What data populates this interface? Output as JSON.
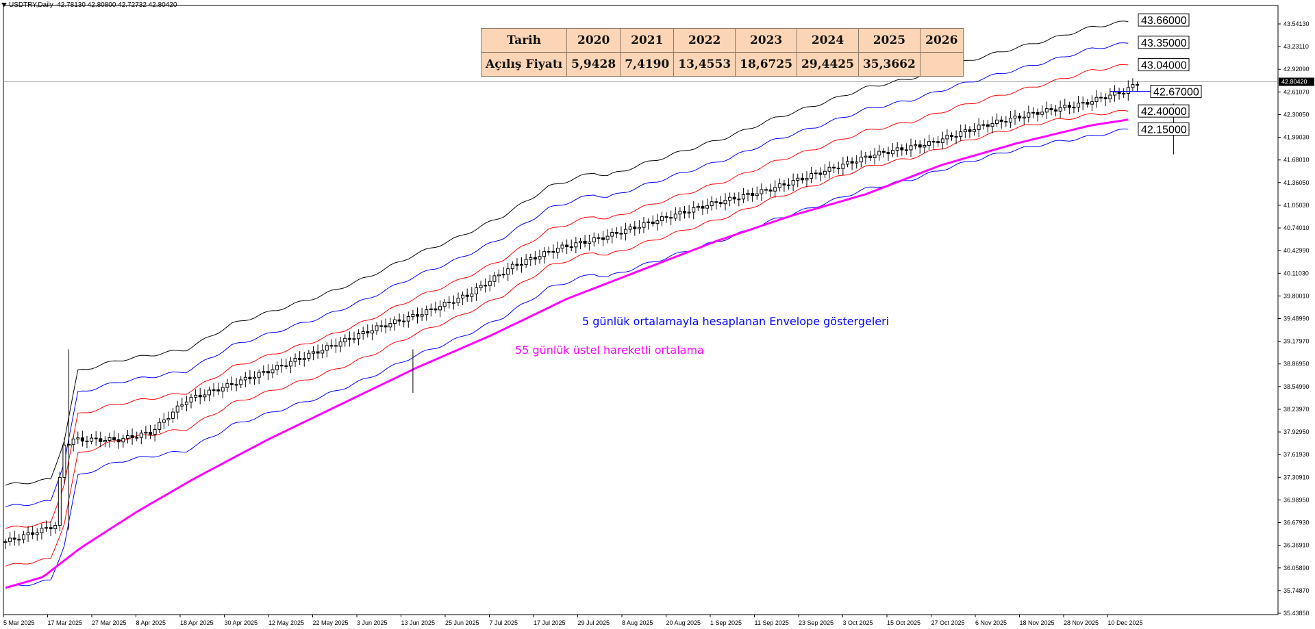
{
  "header": {
    "symbol_line": "USDTRY,Daily",
    "ohlc": "42.78130 42.80800 42.72732 42.80420"
  },
  "table": {
    "row1_label": "Tarih",
    "row2_label": "Açılış Fiyatı",
    "years": [
      "2020",
      "2021",
      "2022",
      "2023",
      "2024",
      "2025",
      "2026"
    ],
    "prices": [
      "5,9428",
      "7,4190",
      "13,4553",
      "18,6725",
      "29,4425",
      "35,3662",
      ""
    ]
  },
  "annotations": {
    "envelope_note": "5 günlük ortalamayla hesaplanan Envelope göstergeleri",
    "ema_note": "55 günlük üstel hareketli ortalama"
  },
  "colors": {
    "envelope_outer": "#000000",
    "envelope_mid": "#0000ff",
    "envelope_inner": "#ff0000",
    "ema": "#ff00ff",
    "candle": "#000000",
    "envelope_text": "#0000ff",
    "ema_text": "#ff00ff"
  },
  "chart_data": {
    "type": "line",
    "symbol": "USDTRY",
    "timeframe": "Daily",
    "current_price": 42.8042,
    "current_price_label": "42.80420",
    "ylim": [
      35.43,
      43.86
    ],
    "y_ticks": [
      "43.54130",
      "43.23110",
      "42.92090",
      "42.61070",
      "42.30050",
      "41.99030",
      "41.68010",
      "41.36050",
      "41.05030",
      "40.74010",
      "40.42990",
      "40.11030",
      "39.80010",
      "39.48990",
      "39.17970",
      "38.86950",
      "38.54990",
      "38.23970",
      "37.92950",
      "37.61930",
      "37.30910",
      "36.98950",
      "36.67930",
      "36.36910",
      "36.05890",
      "35.74870",
      "35.43850"
    ],
    "x_ticks": [
      "5 Mar 2025",
      "17 Mar 2025",
      "27 Mar 2025",
      "8 Apr 2025",
      "18 Apr 2025",
      "30 Apr 2025",
      "12 May 2025",
      "22 May 2025",
      "3 Jun 2025",
      "13 Jun 2025",
      "25 Jun 2025",
      "7 Jul 2025",
      "17 Jul 2025",
      "29 Jul 2025",
      "8 Aug 2025",
      "20 Aug 2025",
      "1 Sep 2025",
      "11 Sep 2025",
      "23 Sep 2025",
      "3 Oct 2025",
      "15 Oct 2025",
      "27 Oct 2025",
      "6 Nov 2025",
      "18 Nov 2025",
      "28 Nov 2025",
      "10 Dec 2025"
    ],
    "level_labels": [
      "43.66000",
      "43.35000",
      "43.04000",
      "42.67000",
      "42.40000",
      "42.15000"
    ],
    "close_anchors": [
      [
        0,
        36.44
      ],
      [
        8,
        36.6
      ],
      [
        11,
        36.67
      ],
      [
        12,
        37.3
      ],
      [
        13,
        37.78
      ],
      [
        15,
        37.85
      ],
      [
        25,
        37.85
      ],
      [
        32,
        37.95
      ],
      [
        40,
        38.4
      ],
      [
        50,
        38.62
      ],
      [
        60,
        38.85
      ],
      [
        70,
        39.1
      ],
      [
        82,
        39.4
      ],
      [
        92,
        39.6
      ],
      [
        102,
        39.85
      ],
      [
        112,
        40.25
      ],
      [
        122,
        40.5
      ],
      [
        132,
        40.65
      ],
      [
        142,
        40.85
      ],
      [
        155,
        41.1
      ],
      [
        168,
        41.3
      ],
      [
        180,
        41.55
      ],
      [
        192,
        41.8
      ],
      [
        204,
        41.95
      ],
      [
        216,
        42.2
      ],
      [
        228,
        42.38
      ],
      [
        238,
        42.5
      ],
      [
        242,
        42.58
      ],
      [
        247,
        42.67
      ],
      [
        250,
        42.78
      ]
    ],
    "envelope_bands": {
      "outer_upper": [
        [
          0,
          37.22
        ],
        [
          10,
          37.3
        ],
        [
          13,
          37.85
        ],
        [
          16,
          38.8
        ],
        [
          25,
          38.95
        ],
        [
          35,
          39.05
        ],
        [
          40,
          39.1
        ],
        [
          43,
          39.2
        ],
        [
          50,
          39.45
        ],
        [
          60,
          39.65
        ],
        [
          70,
          39.85
        ],
        [
          80,
          40.1
        ],
        [
          90,
          40.4
        ],
        [
          100,
          40.65
        ],
        [
          110,
          40.95
        ],
        [
          120,
          41.35
        ],
        [
          130,
          41.55
        ],
        [
          133,
          41.5
        ],
        [
          140,
          41.65
        ],
        [
          150,
          41.85
        ],
        [
          160,
          42.05
        ],
        [
          170,
          42.3
        ],
        [
          180,
          42.5
        ],
        [
          190,
          42.72
        ],
        [
          200,
          42.85
        ],
        [
          210,
          43.05
        ],
        [
          220,
          43.22
        ],
        [
          230,
          43.38
        ],
        [
          240,
          43.56
        ],
        [
          248,
          43.64
        ]
      ],
      "mid_upper": [
        [
          0,
          36.92
        ],
        [
          10,
          37.0
        ],
        [
          13,
          37.55
        ],
        [
          16,
          38.5
        ],
        [
          25,
          38.65
        ],
        [
          35,
          38.75
        ],
        [
          40,
          38.8
        ],
        [
          43,
          38.9
        ],
        [
          50,
          39.15
        ],
        [
          60,
          39.35
        ],
        [
          70,
          39.55
        ],
        [
          80,
          39.8
        ],
        [
          90,
          40.1
        ],
        [
          100,
          40.35
        ],
        [
          110,
          40.65
        ],
        [
          120,
          41.05
        ],
        [
          130,
          41.25
        ],
        [
          133,
          41.2
        ],
        [
          140,
          41.35
        ],
        [
          150,
          41.55
        ],
        [
          160,
          41.75
        ],
        [
          170,
          42.0
        ],
        [
          180,
          42.2
        ],
        [
          190,
          42.42
        ],
        [
          200,
          42.55
        ],
        [
          210,
          42.75
        ],
        [
          220,
          42.92
        ],
        [
          230,
          43.08
        ],
        [
          240,
          43.26
        ],
        [
          248,
          43.34
        ]
      ],
      "inner_upper": [
        [
          0,
          36.62
        ],
        [
          10,
          36.7
        ],
        [
          13,
          37.25
        ],
        [
          16,
          38.2
        ],
        [
          25,
          38.35
        ],
        [
          35,
          38.45
        ],
        [
          40,
          38.5
        ],
        [
          43,
          38.6
        ],
        [
          50,
          38.85
        ],
        [
          60,
          39.05
        ],
        [
          70,
          39.25
        ],
        [
          80,
          39.5
        ],
        [
          90,
          39.8
        ],
        [
          100,
          40.05
        ],
        [
          110,
          40.35
        ],
        [
          120,
          40.75
        ],
        [
          130,
          40.95
        ],
        [
          133,
          40.9
        ],
        [
          140,
          41.05
        ],
        [
          150,
          41.25
        ],
        [
          160,
          41.45
        ],
        [
          170,
          41.7
        ],
        [
          180,
          41.9
        ],
        [
          190,
          42.12
        ],
        [
          200,
          42.25
        ],
        [
          210,
          42.45
        ],
        [
          220,
          42.62
        ],
        [
          230,
          42.78
        ],
        [
          240,
          42.96
        ],
        [
          248,
          43.04
        ]
      ],
      "inner_lower": [
        [
          0,
          36.1
        ],
        [
          10,
          36.2
        ],
        [
          13,
          36.7
        ],
        [
          16,
          37.65
        ],
        [
          25,
          37.85
        ],
        [
          35,
          37.95
        ],
        [
          40,
          38.0
        ],
        [
          43,
          38.1
        ],
        [
          50,
          38.35
        ],
        [
          60,
          38.55
        ],
        [
          70,
          38.75
        ],
        [
          80,
          39.0
        ],
        [
          90,
          39.3
        ],
        [
          100,
          39.55
        ],
        [
          110,
          39.85
        ],
        [
          120,
          40.25
        ],
        [
          130,
          40.45
        ],
        [
          133,
          40.4
        ],
        [
          140,
          40.55
        ],
        [
          150,
          40.75
        ],
        [
          160,
          40.95
        ],
        [
          170,
          41.2
        ],
        [
          180,
          41.4
        ],
        [
          190,
          41.62
        ],
        [
          200,
          41.75
        ],
        [
          210,
          41.95
        ],
        [
          220,
          42.12
        ],
        [
          230,
          42.25
        ],
        [
          240,
          42.35
        ],
        [
          248,
          42.4
        ]
      ],
      "mid_lower": [
        [
          0,
          35.8
        ],
        [
          10,
          35.9
        ],
        [
          13,
          36.4
        ],
        [
          16,
          37.35
        ],
        [
          25,
          37.55
        ],
        [
          35,
          37.65
        ],
        [
          40,
          37.7
        ],
        [
          43,
          37.8
        ],
        [
          50,
          38.05
        ],
        [
          60,
          38.25
        ],
        [
          70,
          38.45
        ],
        [
          80,
          38.7
        ],
        [
          90,
          39.0
        ],
        [
          100,
          39.25
        ],
        [
          110,
          39.55
        ],
        [
          120,
          39.95
        ],
        [
          130,
          40.15
        ],
        [
          133,
          40.1
        ],
        [
          140,
          40.25
        ],
        [
          150,
          40.45
        ],
        [
          160,
          40.65
        ],
        [
          170,
          40.9
        ],
        [
          180,
          41.1
        ],
        [
          190,
          41.32
        ],
        [
          200,
          41.45
        ],
        [
          210,
          41.65
        ],
        [
          220,
          41.82
        ],
        [
          230,
          41.95
        ],
        [
          240,
          42.05
        ],
        [
          248,
          42.15
        ]
      ]
    },
    "ema55": [
      [
        0,
        35.8
      ],
      [
        10,
        35.95
      ],
      [
        20,
        36.35
      ],
      [
        35,
        36.85
      ],
      [
        50,
        37.3
      ],
      [
        70,
        37.85
      ],
      [
        90,
        38.35
      ],
      [
        110,
        38.85
      ],
      [
        130,
        39.3
      ],
      [
        150,
        39.8
      ],
      [
        170,
        40.2
      ],
      [
        190,
        40.6
      ],
      [
        210,
        40.95
      ],
      [
        230,
        41.25
      ],
      [
        250,
        41.65
      ],
      [
        270,
        41.95
      ],
      [
        290,
        42.2
      ],
      [
        300,
        42.28
      ]
    ],
    "ema55_x_scale": "candle_index_0_to_248",
    "spikes": [
      [
        14,
        39.1,
        36.6
      ],
      [
        90,
        39.1,
        38.5
      ],
      [
        258,
        42.5,
        41.8
      ]
    ]
  }
}
